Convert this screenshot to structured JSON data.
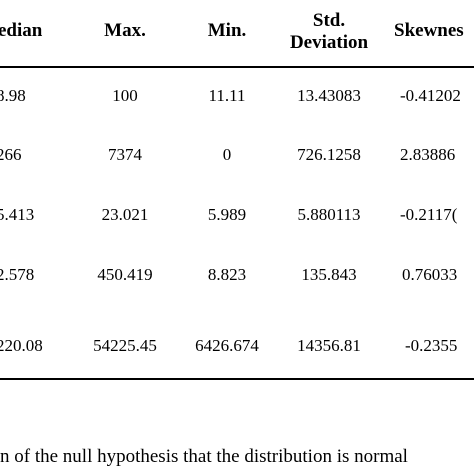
{
  "table": {
    "headers": {
      "median": "edian",
      "max": "Max.",
      "min": "Min.",
      "std_line1": "Std.",
      "std_line2": "Deviation",
      "skew": "Skewnes"
    },
    "rows": [
      {
        "median": "8.98",
        "max": "100",
        "min": "11.11",
        "std": "13.43083",
        "skew": "-0.41202"
      },
      {
        "median": "266",
        "max": "7374",
        "min": "0",
        "std": "726.1258",
        "skew": "2.83886"
      },
      {
        "median": "5.413",
        "max": "23.021",
        "min": "5.989",
        "std": "5.880113",
        "skew": "-0.2117("
      },
      {
        "median": "2.578",
        "max": "450.419",
        "min": "8.823",
        "std": "135.843",
        "skew": "0.76033"
      },
      {
        "median": "220.08",
        "max": "54225.45",
        "min": "6426.674",
        "std": "14356.81",
        "skew": "-0.2355"
      }
    ]
  },
  "footnote": "n of the null hypothesis that the distribution is normal"
}
